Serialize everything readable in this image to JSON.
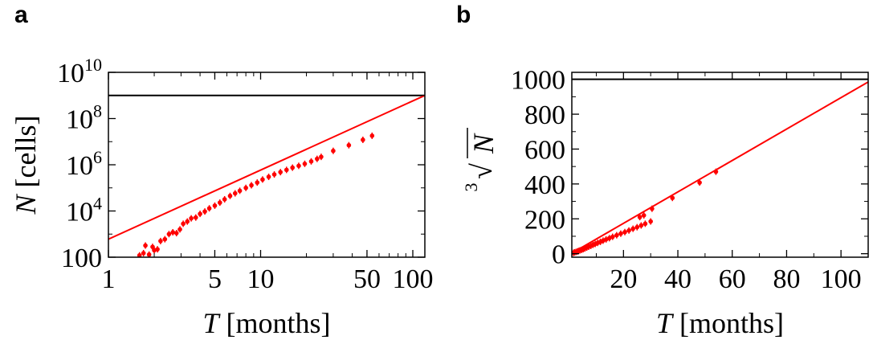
{
  "panels": [
    {
      "label": "a"
    },
    {
      "label": "b"
    }
  ],
  "chart_data": [
    {
      "type": "scatter",
      "panel": "a",
      "xlabel": "T [months]",
      "xlabel_var": "T",
      "xlabel_unit": "[months]",
      "ylabel": "N [cells]",
      "ylabel_var": "N",
      "ylabel_unit": "[cells]",
      "xscale": "log",
      "yscale": "log",
      "xlim": [
        1,
        120
      ],
      "ylim": [
        100,
        10000000000.0
      ],
      "xticks": [
        {
          "value": 1,
          "label": "1"
        },
        {
          "value": 5,
          "label": "5"
        },
        {
          "value": 10,
          "label": "10"
        },
        {
          "value": 50,
          "label": "50"
        },
        {
          "value": 100,
          "label": "100"
        }
      ],
      "yticks": [
        {
          "value": 100,
          "label": "100",
          "base": "",
          "exp": ""
        },
        {
          "value": 10000,
          "label": "10^4",
          "base": "10",
          "exp": "4"
        },
        {
          "value": 1000000,
          "label": "10^6",
          "base": "10",
          "exp": "6"
        },
        {
          "value": 100000000,
          "label": "10^8",
          "base": "10",
          "exp": "8"
        },
        {
          "value": 10000000000,
          "label": "10^10",
          "base": "10",
          "exp": "10"
        }
      ],
      "series_color": "#ff0000",
      "reference_color": "#000000",
      "horizontal_line": {
        "y": 1000000000.0
      },
      "fit_line": {
        "points": [
          [
            1,
            600
          ],
          [
            120,
            1000000000.0
          ]
        ]
      },
      "points": [
        [
          1.6,
          120
        ],
        [
          1.7,
          150
        ],
        [
          1.75,
          320
        ],
        [
          1.85,
          130
        ],
        [
          1.95,
          280
        ],
        [
          2.0,
          200
        ],
        [
          2.1,
          220
        ],
        [
          2.2,
          500
        ],
        [
          2.35,
          600
        ],
        [
          2.5,
          1000
        ],
        [
          2.65,
          1200
        ],
        [
          2.8,
          1100
        ],
        [
          2.95,
          1600
        ],
        [
          3.1,
          2800
        ],
        [
          3.3,
          3500
        ],
        [
          3.5,
          4800
        ],
        [
          3.75,
          5200
        ],
        [
          4.0,
          7500
        ],
        [
          4.3,
          9500
        ],
        [
          4.6,
          13000
        ],
        [
          5.0,
          17000
        ],
        [
          5.4,
          23000
        ],
        [
          5.8,
          32000
        ],
        [
          6.3,
          45000
        ],
        [
          6.8,
          58000
        ],
        [
          7.3,
          75000
        ],
        [
          8.0,
          100000
        ],
        [
          8.7,
          130000
        ],
        [
          9.5,
          170000
        ],
        [
          10.3,
          230000
        ],
        [
          11.3,
          300000
        ],
        [
          12.3,
          380000
        ],
        [
          13.5,
          480000
        ],
        [
          14.8,
          600000
        ],
        [
          16.2,
          750000
        ],
        [
          17.8,
          900000
        ],
        [
          19.5,
          1100000
        ],
        [
          21.5,
          1400000
        ],
        [
          23.5,
          1800000
        ],
        [
          25.0,
          2200000
        ],
        [
          30.0,
          4000000
        ],
        [
          38.0,
          7000000
        ],
        [
          47.0,
          12000000
        ],
        [
          54.0,
          18000000
        ]
      ]
    },
    {
      "type": "scatter",
      "panel": "b",
      "xlabel": "T [months]",
      "xlabel_var": "T",
      "xlabel_unit": "[months]",
      "ylabel": "∛N",
      "ylabel_index": "3",
      "ylabel_var": "N",
      "xscale": "linear",
      "yscale": "linear",
      "xlim": [
        1,
        110
      ],
      "ylim": [
        -20,
        1040
      ],
      "xticks": [
        {
          "value": 20,
          "label": "20"
        },
        {
          "value": 40,
          "label": "40"
        },
        {
          "value": 60,
          "label": "60"
        },
        {
          "value": 80,
          "label": "80"
        },
        {
          "value": 100,
          "label": "100"
        }
      ],
      "yticks": [
        {
          "value": 0,
          "label": "0"
        },
        {
          "value": 200,
          "label": "200"
        },
        {
          "value": 400,
          "label": "400"
        },
        {
          "value": 600,
          "label": "600"
        },
        {
          "value": 800,
          "label": "800"
        },
        {
          "value": 1000,
          "label": "1000"
        }
      ],
      "series_color": "#ff0000",
      "reference_color": "#000000",
      "horizontal_line": {
        "y": 1000
      },
      "fit_line": {
        "points": [
          [
            1,
            3
          ],
          [
            110,
            985
          ]
        ]
      },
      "points": [
        [
          1.6,
          5
        ],
        [
          2.0,
          8
        ],
        [
          2.5,
          10
        ],
        [
          3.0,
          13
        ],
        [
          3.5,
          16
        ],
        [
          4.0,
          19
        ],
        [
          4.6,
          22
        ],
        [
          5.2,
          26
        ],
        [
          5.8,
          30
        ],
        [
          6.5,
          35
        ],
        [
          7.2,
          40
        ],
        [
          8.0,
          45
        ],
        [
          8.8,
          51
        ],
        [
          9.6,
          56
        ],
        [
          10.5,
          62
        ],
        [
          11.5,
          68
        ],
        [
          12.5,
          75
        ],
        [
          13.6,
          82
        ],
        [
          14.8,
          89
        ],
        [
          16.0,
          97
        ],
        [
          17.5,
          106
        ],
        [
          19.0,
          115
        ],
        [
          20.5,
          124
        ],
        [
          22.0,
          133
        ],
        [
          23.5,
          143
        ],
        [
          25.0,
          152
        ],
        [
          26.5,
          162
        ],
        [
          28.0,
          172
        ],
        [
          30.0,
          185
        ],
        [
          26.0,
          210
        ],
        [
          27.5,
          220
        ],
        [
          30.5,
          258
        ],
        [
          38.0,
          320
        ],
        [
          48.0,
          408
        ],
        [
          54.0,
          470
        ]
      ]
    }
  ]
}
